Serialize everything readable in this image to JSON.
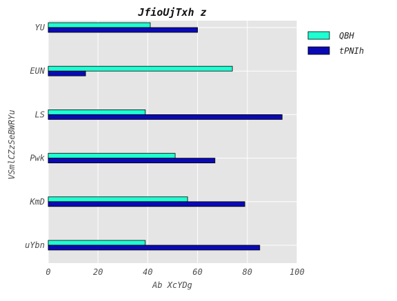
{
  "chart_data": {
    "type": "bar",
    "orientation": "horizontal",
    "title": "JfioUjTxh  z",
    "xlabel": "Ab XcYDg",
    "ylabel": "VSmlCZzSeBWRYu",
    "categories": [
      "uYbn",
      "KmD",
      "Pwk",
      "LS",
      "EUN",
      "YU"
    ],
    "series": [
      {
        "name": "QBH",
        "color": "#1effd2",
        "values": [
          39,
          56,
          51,
          39,
          74,
          41
        ]
      },
      {
        "name": "tPNIh",
        "color": "#0a0ab4",
        "values": [
          85,
          79,
          67,
          94,
          15,
          60
        ]
      }
    ],
    "xlim": [
      0,
      100
    ],
    "xticks": [
      0,
      20,
      40,
      60,
      80,
      100
    ],
    "grid": true,
    "legend": "top-right outside"
  }
}
